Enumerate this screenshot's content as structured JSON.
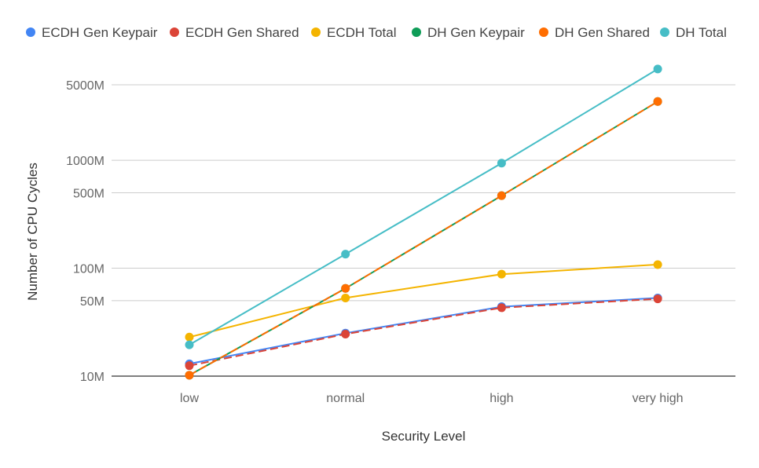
{
  "chart_data": {
    "type": "line",
    "xlabel": "Security Level",
    "ylabel": "Number of CPU Cycles",
    "y_scale": "log",
    "ylim": [
      10,
      8000
    ],
    "y_ticks": [
      10,
      50,
      100,
      500,
      1000,
      5000
    ],
    "y_tick_labels": [
      "10M",
      "50M",
      "100M",
      "500M",
      "1000M",
      "5000M"
    ],
    "categories": [
      "low",
      "normal",
      "high",
      "very high"
    ],
    "legend_position": "top",
    "grid": true,
    "series": [
      {
        "name": "ECDH Gen Keypair",
        "color": "#4285f4",
        "dashed": false,
        "values": [
          13,
          25,
          44,
          53
        ]
      },
      {
        "name": "ECDH Gen Shared",
        "color": "#db4437",
        "dashed": true,
        "values": [
          12.5,
          24.5,
          43,
          52
        ]
      },
      {
        "name": "ECDH Total",
        "color": "#f4b400",
        "dashed": false,
        "values": [
          23,
          53,
          88,
          108
        ]
      },
      {
        "name": "DH Gen Keypair",
        "color": "#0f9d58",
        "dashed": false,
        "values": [
          10.2,
          65,
          470,
          3500
        ]
      },
      {
        "name": "DH Gen Shared",
        "color": "#ff6d00",
        "dashed": true,
        "values": [
          10.2,
          65,
          470,
          3500
        ]
      },
      {
        "name": "DH Total",
        "color": "#46bdc6",
        "dashed": false,
        "values": [
          19.5,
          135,
          940,
          7000
        ]
      }
    ]
  }
}
